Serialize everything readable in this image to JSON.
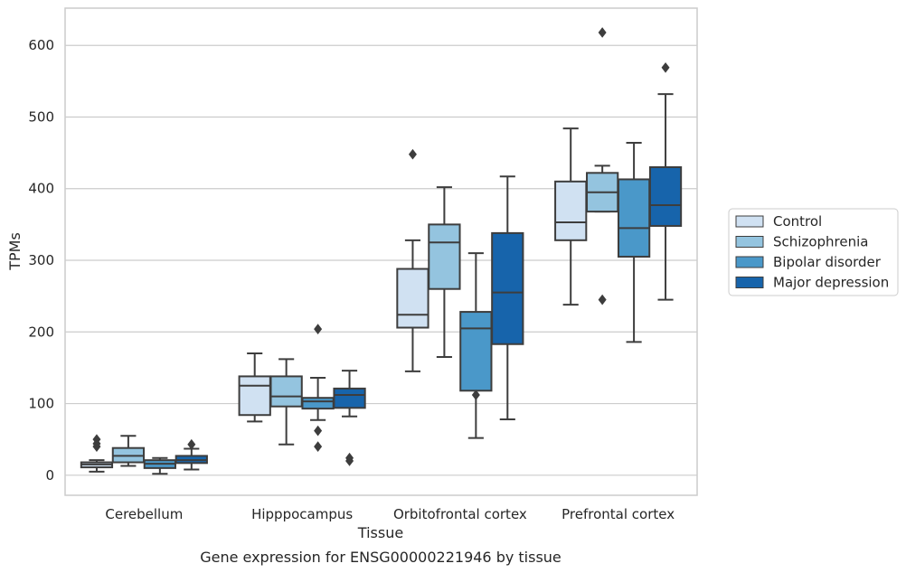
{
  "chart_data": {
    "type": "box",
    "title": "",
    "caption": "Gene expression for ENSG00000221946 by tissue",
    "xlabel": "Tissue",
    "ylabel": "TPMs",
    "ylim": [
      -28,
      652
    ],
    "yticks": [
      0,
      100,
      200,
      300,
      400,
      500,
      600
    ],
    "grid": "horizontal",
    "legend_position": "right",
    "categories": [
      "Cerebellum",
      "Hipppocampus",
      "Orbitofrontal cortex",
      "Prefrontal cortex"
    ],
    "series": [
      {
        "name": "Control",
        "color": "#d0e1f2",
        "boxes": [
          {
            "whislo": 5,
            "q1": 11,
            "med": 15,
            "q3": 18,
            "whishi": 21,
            "fliers": [
              40,
              44,
              50
            ]
          },
          {
            "whislo": 75,
            "q1": 84,
            "med": 125,
            "q3": 138,
            "whishi": 170,
            "fliers": []
          },
          {
            "whislo": 145,
            "q1": 206,
            "med": 224,
            "q3": 288,
            "whishi": 328,
            "fliers": [
              448
            ]
          },
          {
            "whislo": 238,
            "q1": 328,
            "med": 353,
            "q3": 410,
            "whishi": 484,
            "fliers": []
          }
        ]
      },
      {
        "name": "Schizophrenia",
        "color": "#94c4df",
        "boxes": [
          {
            "whislo": 13,
            "q1": 18,
            "med": 27,
            "q3": 38,
            "whishi": 55,
            "fliers": []
          },
          {
            "whislo": 43,
            "q1": 96,
            "med": 110,
            "q3": 138,
            "whishi": 162,
            "fliers": []
          },
          {
            "whislo": 165,
            "q1": 260,
            "med": 325,
            "q3": 350,
            "whishi": 402,
            "fliers": []
          },
          {
            "whislo": 368,
            "q1": 368,
            "med": 395,
            "q3": 422,
            "whishi": 432,
            "fliers": [
              618,
              245
            ]
          }
        ]
      },
      {
        "name": "Bipolar disorder",
        "color": "#4a98c9",
        "boxes": [
          {
            "whislo": 2,
            "q1": 10,
            "med": 16,
            "q3": 21,
            "whishi": 24,
            "fliers": []
          },
          {
            "whislo": 77,
            "q1": 93,
            "med": 103,
            "q3": 108,
            "whishi": 136,
            "fliers": [
              204,
              62,
              40
            ]
          },
          {
            "whislo": 52,
            "q1": 118,
            "med": 205,
            "q3": 228,
            "whishi": 310,
            "fliers": [
              112
            ]
          },
          {
            "whislo": 186,
            "q1": 305,
            "med": 345,
            "q3": 413,
            "whishi": 464,
            "fliers": []
          }
        ]
      },
      {
        "name": "Major depression",
        "color": "#1764ab",
        "boxes": [
          {
            "whislo": 8,
            "q1": 17,
            "med": 21,
            "q3": 27,
            "whishi": 37,
            "fliers": [
              43
            ]
          },
          {
            "whislo": 82,
            "q1": 94,
            "med": 112,
            "q3": 121,
            "whishi": 146,
            "fliers": [
              24,
              20
            ]
          },
          {
            "whislo": 78,
            "q1": 183,
            "med": 255,
            "q3": 338,
            "whishi": 417,
            "fliers": []
          },
          {
            "whislo": 245,
            "q1": 348,
            "med": 377,
            "q3": 430,
            "whishi": 532,
            "fliers": [
              569
            ]
          }
        ]
      }
    ]
  }
}
